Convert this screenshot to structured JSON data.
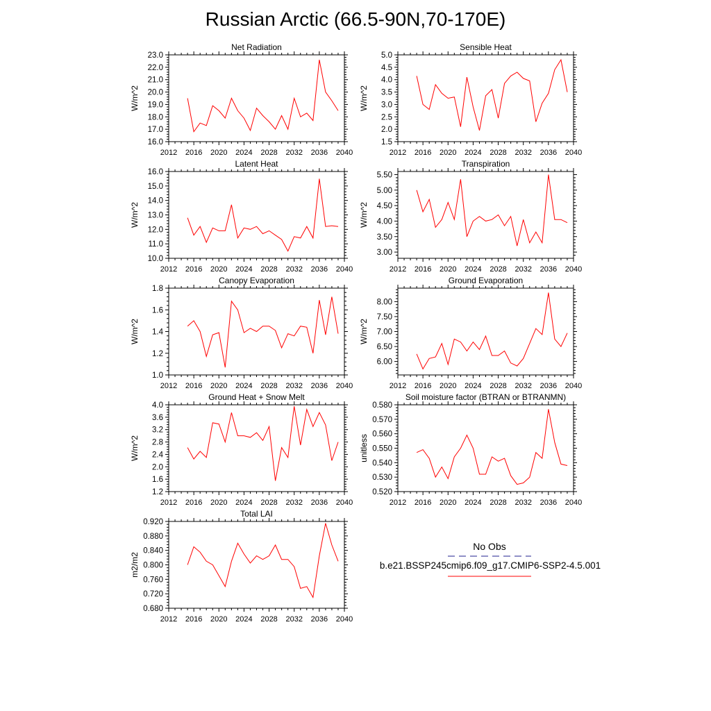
{
  "title": "Russian Arctic (66.5-90N,70-170E)",
  "legend": {
    "entries": [
      {
        "label": "No Obs",
        "color": "#1f1f8f",
        "style": "dashed"
      },
      {
        "label": "b.e21.BSSP245cmip6.f09_g17.CMIP6-SSP2-4.5.001",
        "color": "#ff0000",
        "style": "solid"
      }
    ]
  },
  "chart_data": [
    {
      "type": "line",
      "title": "Net Radiation",
      "xlabel": "",
      "ylabel": "W/m^2",
      "xlim": [
        2012,
        2040
      ],
      "ylim": [
        16.0,
        23.0
      ],
      "xticks": [
        2012,
        2016,
        2020,
        2024,
        2028,
        2032,
        2036,
        2040
      ],
      "yticks": [
        16.0,
        17.0,
        18.0,
        19.0,
        20.0,
        21.0,
        22.0,
        23.0
      ],
      "ydec": 1,
      "series": [
        {
          "name": "b.e21.BSSP245cmip6.f09_g17.CMIP6-SSP2-4.5.001",
          "color": "#ff0000",
          "x": [
            2015,
            2016,
            2017,
            2018,
            2019,
            2020,
            2021,
            2022,
            2023,
            2024,
            2025,
            2026,
            2027,
            2028,
            2029,
            2030,
            2031,
            2032,
            2033,
            2034,
            2035,
            2036,
            2037,
            2038,
            2039
          ],
          "y": [
            19.5,
            16.8,
            17.5,
            17.3,
            18.9,
            18.5,
            17.9,
            19.5,
            18.5,
            17.9,
            16.9,
            18.7,
            18.1,
            17.6,
            17.0,
            18.1,
            17.0,
            19.5,
            18.0,
            18.3,
            17.7,
            22.6,
            20.0,
            19.3,
            18.5
          ]
        }
      ]
    },
    {
      "type": "line",
      "title": "Sensible Heat",
      "xlabel": "",
      "ylabel": "W/m^2",
      "xlim": [
        2012,
        2040
      ],
      "ylim": [
        1.5,
        5.0
      ],
      "xticks": [
        2012,
        2016,
        2020,
        2024,
        2028,
        2032,
        2036,
        2040
      ],
      "yticks": [
        1.5,
        2.0,
        2.5,
        3.0,
        3.5,
        4.0,
        4.5,
        5.0
      ],
      "ydec": 1,
      "series": [
        {
          "name": "b.e21.BSSP245cmip6.f09_g17.CMIP6-SSP2-4.5.001",
          "color": "#ff0000",
          "x": [
            2015,
            2016,
            2017,
            2018,
            2019,
            2020,
            2021,
            2022,
            2023,
            2024,
            2025,
            2026,
            2027,
            2028,
            2029,
            2030,
            2031,
            2032,
            2033,
            2034,
            2035,
            2036,
            2037,
            2038,
            2039
          ],
          "y": [
            4.15,
            3.0,
            2.8,
            3.8,
            3.45,
            3.25,
            3.3,
            2.1,
            4.1,
            2.9,
            1.95,
            3.35,
            3.6,
            2.45,
            3.85,
            4.15,
            4.3,
            4.05,
            3.95,
            2.3,
            3.05,
            3.45,
            4.4,
            4.8,
            3.5
          ]
        }
      ]
    },
    {
      "type": "line",
      "title": "Latent Heat",
      "xlabel": "",
      "ylabel": "W/m^2",
      "xlim": [
        2012,
        2040
      ],
      "ylim": [
        10.0,
        16.0
      ],
      "xticks": [
        2012,
        2016,
        2020,
        2024,
        2028,
        2032,
        2036,
        2040
      ],
      "yticks": [
        10.0,
        11.0,
        12.0,
        13.0,
        14.0,
        15.0,
        16.0
      ],
      "ydec": 1,
      "series": [
        {
          "name": "b.e21.BSSP245cmip6.f09_g17.CMIP6-SSP2-4.5.001",
          "color": "#ff0000",
          "x": [
            2015,
            2016,
            2017,
            2018,
            2019,
            2020,
            2021,
            2022,
            2023,
            2024,
            2025,
            2026,
            2027,
            2028,
            2029,
            2030,
            2031,
            2032,
            2033,
            2034,
            2035,
            2036,
            2037,
            2038,
            2039
          ],
          "y": [
            12.8,
            11.6,
            12.2,
            11.1,
            12.1,
            11.9,
            11.9,
            13.7,
            11.4,
            12.1,
            12.0,
            12.2,
            11.7,
            11.9,
            11.6,
            11.3,
            10.5,
            11.5,
            11.4,
            12.2,
            11.4,
            15.5,
            12.2,
            12.25,
            12.2
          ]
        }
      ]
    },
    {
      "type": "line",
      "title": "Transpiration",
      "xlabel": "",
      "ylabel": "W/m^2",
      "xlim": [
        2012,
        2040
      ],
      "ylim": [
        2.8,
        5.6
      ],
      "xticks": [
        2012,
        2016,
        2020,
        2024,
        2028,
        2032,
        2036,
        2040
      ],
      "yticks": [
        3.0,
        3.5,
        4.0,
        4.5,
        5.0,
        5.5
      ],
      "ydec": 2,
      "series": [
        {
          "name": "b.e21.BSSP245cmip6.f09_g17.CMIP6-SSP2-4.5.001",
          "color": "#ff0000",
          "x": [
            2015,
            2016,
            2017,
            2018,
            2019,
            2020,
            2021,
            2022,
            2023,
            2024,
            2025,
            2026,
            2027,
            2028,
            2029,
            2030,
            2031,
            2032,
            2033,
            2034,
            2035,
            2036,
            2037,
            2038,
            2039
          ],
          "y": [
            5.0,
            4.3,
            4.7,
            3.8,
            4.05,
            4.6,
            4.05,
            5.35,
            3.5,
            4.0,
            4.15,
            4.0,
            4.05,
            4.2,
            3.85,
            4.15,
            3.2,
            4.05,
            3.3,
            3.65,
            3.3,
            5.5,
            4.05,
            4.05,
            3.95
          ]
        }
      ]
    },
    {
      "type": "line",
      "title": "Canopy Evaporation",
      "xlabel": "",
      "ylabel": "W/m^2",
      "xlim": [
        2012,
        2040
      ],
      "ylim": [
        1.0,
        1.8
      ],
      "xticks": [
        2012,
        2016,
        2020,
        2024,
        2028,
        2032,
        2036,
        2040
      ],
      "yticks": [
        1.0,
        1.2,
        1.4,
        1.6,
        1.8
      ],
      "ydec": 1,
      "series": [
        {
          "name": "b.e21.BSSP245cmip6.f09_g17.CMIP6-SSP2-4.5.001",
          "color": "#ff0000",
          "x": [
            2015,
            2016,
            2017,
            2018,
            2019,
            2020,
            2021,
            2022,
            2023,
            2024,
            2025,
            2026,
            2027,
            2028,
            2029,
            2030,
            2031,
            2032,
            2033,
            2034,
            2035,
            2036,
            2037,
            2038,
            2039
          ],
          "y": [
            1.45,
            1.5,
            1.4,
            1.17,
            1.37,
            1.39,
            1.07,
            1.68,
            1.6,
            1.39,
            1.43,
            1.4,
            1.45,
            1.45,
            1.41,
            1.25,
            1.38,
            1.36,
            1.45,
            1.44,
            1.2,
            1.69,
            1.37,
            1.72,
            1.38
          ]
        }
      ]
    },
    {
      "type": "line",
      "title": "Ground Evaporation",
      "xlabel": "",
      "ylabel": "W/m^2",
      "xlim": [
        2012,
        2040
      ],
      "ylim": [
        5.55,
        8.45
      ],
      "xticks": [
        2012,
        2016,
        2020,
        2024,
        2028,
        2032,
        2036,
        2040
      ],
      "yticks": [
        6.0,
        6.5,
        7.0,
        7.5,
        8.0
      ],
      "ydec": 2,
      "series": [
        {
          "name": "b.e21.BSSP245cmip6.f09_g17.CMIP6-SSP2-4.5.001",
          "color": "#ff0000",
          "x": [
            2015,
            2016,
            2017,
            2018,
            2019,
            2020,
            2021,
            2022,
            2023,
            2024,
            2025,
            2026,
            2027,
            2028,
            2029,
            2030,
            2031,
            2032,
            2033,
            2034,
            2035,
            2036,
            2037,
            2038,
            2039
          ],
          "y": [
            6.25,
            5.75,
            6.1,
            6.15,
            6.6,
            5.9,
            6.75,
            6.65,
            6.35,
            6.65,
            6.4,
            6.85,
            6.2,
            6.2,
            6.35,
            5.95,
            5.85,
            6.1,
            6.6,
            7.1,
            6.9,
            8.3,
            6.75,
            6.5,
            6.95
          ]
        }
      ]
    },
    {
      "type": "line",
      "title": "Ground Heat + Snow Melt",
      "xlabel": "",
      "ylabel": "W/m^2",
      "xlim": [
        2012,
        2040
      ],
      "ylim": [
        1.2,
        4.0
      ],
      "xticks": [
        2012,
        2016,
        2020,
        2024,
        2028,
        2032,
        2036,
        2040
      ],
      "yticks": [
        1.2,
        1.6,
        2.0,
        2.4,
        2.8,
        3.2,
        3.6,
        4.0
      ],
      "ydec": 1,
      "series": [
        {
          "name": "b.e21.BSSP245cmip6.f09_g17.CMIP6-SSP2-4.5.001",
          "color": "#ff0000",
          "x": [
            2015,
            2016,
            2017,
            2018,
            2019,
            2020,
            2021,
            2022,
            2023,
            2024,
            2025,
            2026,
            2027,
            2028,
            2029,
            2030,
            2031,
            2032,
            2033,
            2034,
            2035,
            2036,
            2037,
            2038,
            2039
          ],
          "y": [
            2.62,
            2.25,
            2.5,
            2.3,
            3.42,
            3.38,
            2.8,
            3.75,
            3.0,
            3.0,
            2.95,
            3.1,
            2.85,
            3.3,
            1.55,
            2.62,
            2.3,
            3.95,
            2.7,
            3.85,
            3.3,
            3.75,
            3.35,
            2.2,
            2.8
          ]
        }
      ]
    },
    {
      "type": "line",
      "title": "Soil moisture factor (BTRAN or BTRANMN)",
      "xlabel": "",
      "ylabel": "unitless",
      "xlim": [
        2012,
        2040
      ],
      "ylim": [
        0.52,
        0.58
      ],
      "xticks": [
        2012,
        2016,
        2020,
        2024,
        2028,
        2032,
        2036,
        2040
      ],
      "yticks": [
        0.52,
        0.53,
        0.54,
        0.55,
        0.56,
        0.57,
        0.58
      ],
      "ydec": 3,
      "series": [
        {
          "name": "b.e21.BSSP245cmip6.f09_g17.CMIP6-SSP2-4.5.001",
          "color": "#ff0000",
          "x": [
            2015,
            2016,
            2017,
            2018,
            2019,
            2020,
            2021,
            2022,
            2023,
            2024,
            2025,
            2026,
            2027,
            2028,
            2029,
            2030,
            2031,
            2032,
            2033,
            2034,
            2035,
            2036,
            2037,
            2038,
            2039
          ],
          "y": [
            0.547,
            0.549,
            0.543,
            0.53,
            0.537,
            0.529,
            0.544,
            0.55,
            0.559,
            0.55,
            0.532,
            0.532,
            0.544,
            0.541,
            0.543,
            0.531,
            0.525,
            0.526,
            0.53,
            0.547,
            0.543,
            0.577,
            0.554,
            0.539,
            0.538
          ]
        }
      ]
    },
    {
      "type": "line",
      "title": "Total LAI",
      "xlabel": "",
      "ylabel": "m2/m2",
      "xlim": [
        2012,
        2040
      ],
      "ylim": [
        0.68,
        0.92
      ],
      "xticks": [
        2012,
        2016,
        2020,
        2024,
        2028,
        2032,
        2036,
        2040
      ],
      "yticks": [
        0.68,
        0.72,
        0.76,
        0.8,
        0.84,
        0.88,
        0.92
      ],
      "ydec": 3,
      "series": [
        {
          "name": "b.e21.BSSP245cmip6.f09_g17.CMIP6-SSP2-4.5.001",
          "color": "#ff0000",
          "x": [
            2015,
            2016,
            2017,
            2018,
            2019,
            2020,
            2021,
            2022,
            2023,
            2024,
            2025,
            2026,
            2027,
            2028,
            2029,
            2030,
            2031,
            2032,
            2033,
            2034,
            2035,
            2036,
            2037,
            2038,
            2039
          ],
          "y": [
            0.8,
            0.85,
            0.835,
            0.81,
            0.8,
            0.77,
            0.74,
            0.81,
            0.86,
            0.83,
            0.805,
            0.825,
            0.815,
            0.825,
            0.855,
            0.815,
            0.815,
            0.795,
            0.735,
            0.74,
            0.71,
            0.825,
            0.915,
            0.855,
            0.81
          ]
        }
      ]
    }
  ]
}
